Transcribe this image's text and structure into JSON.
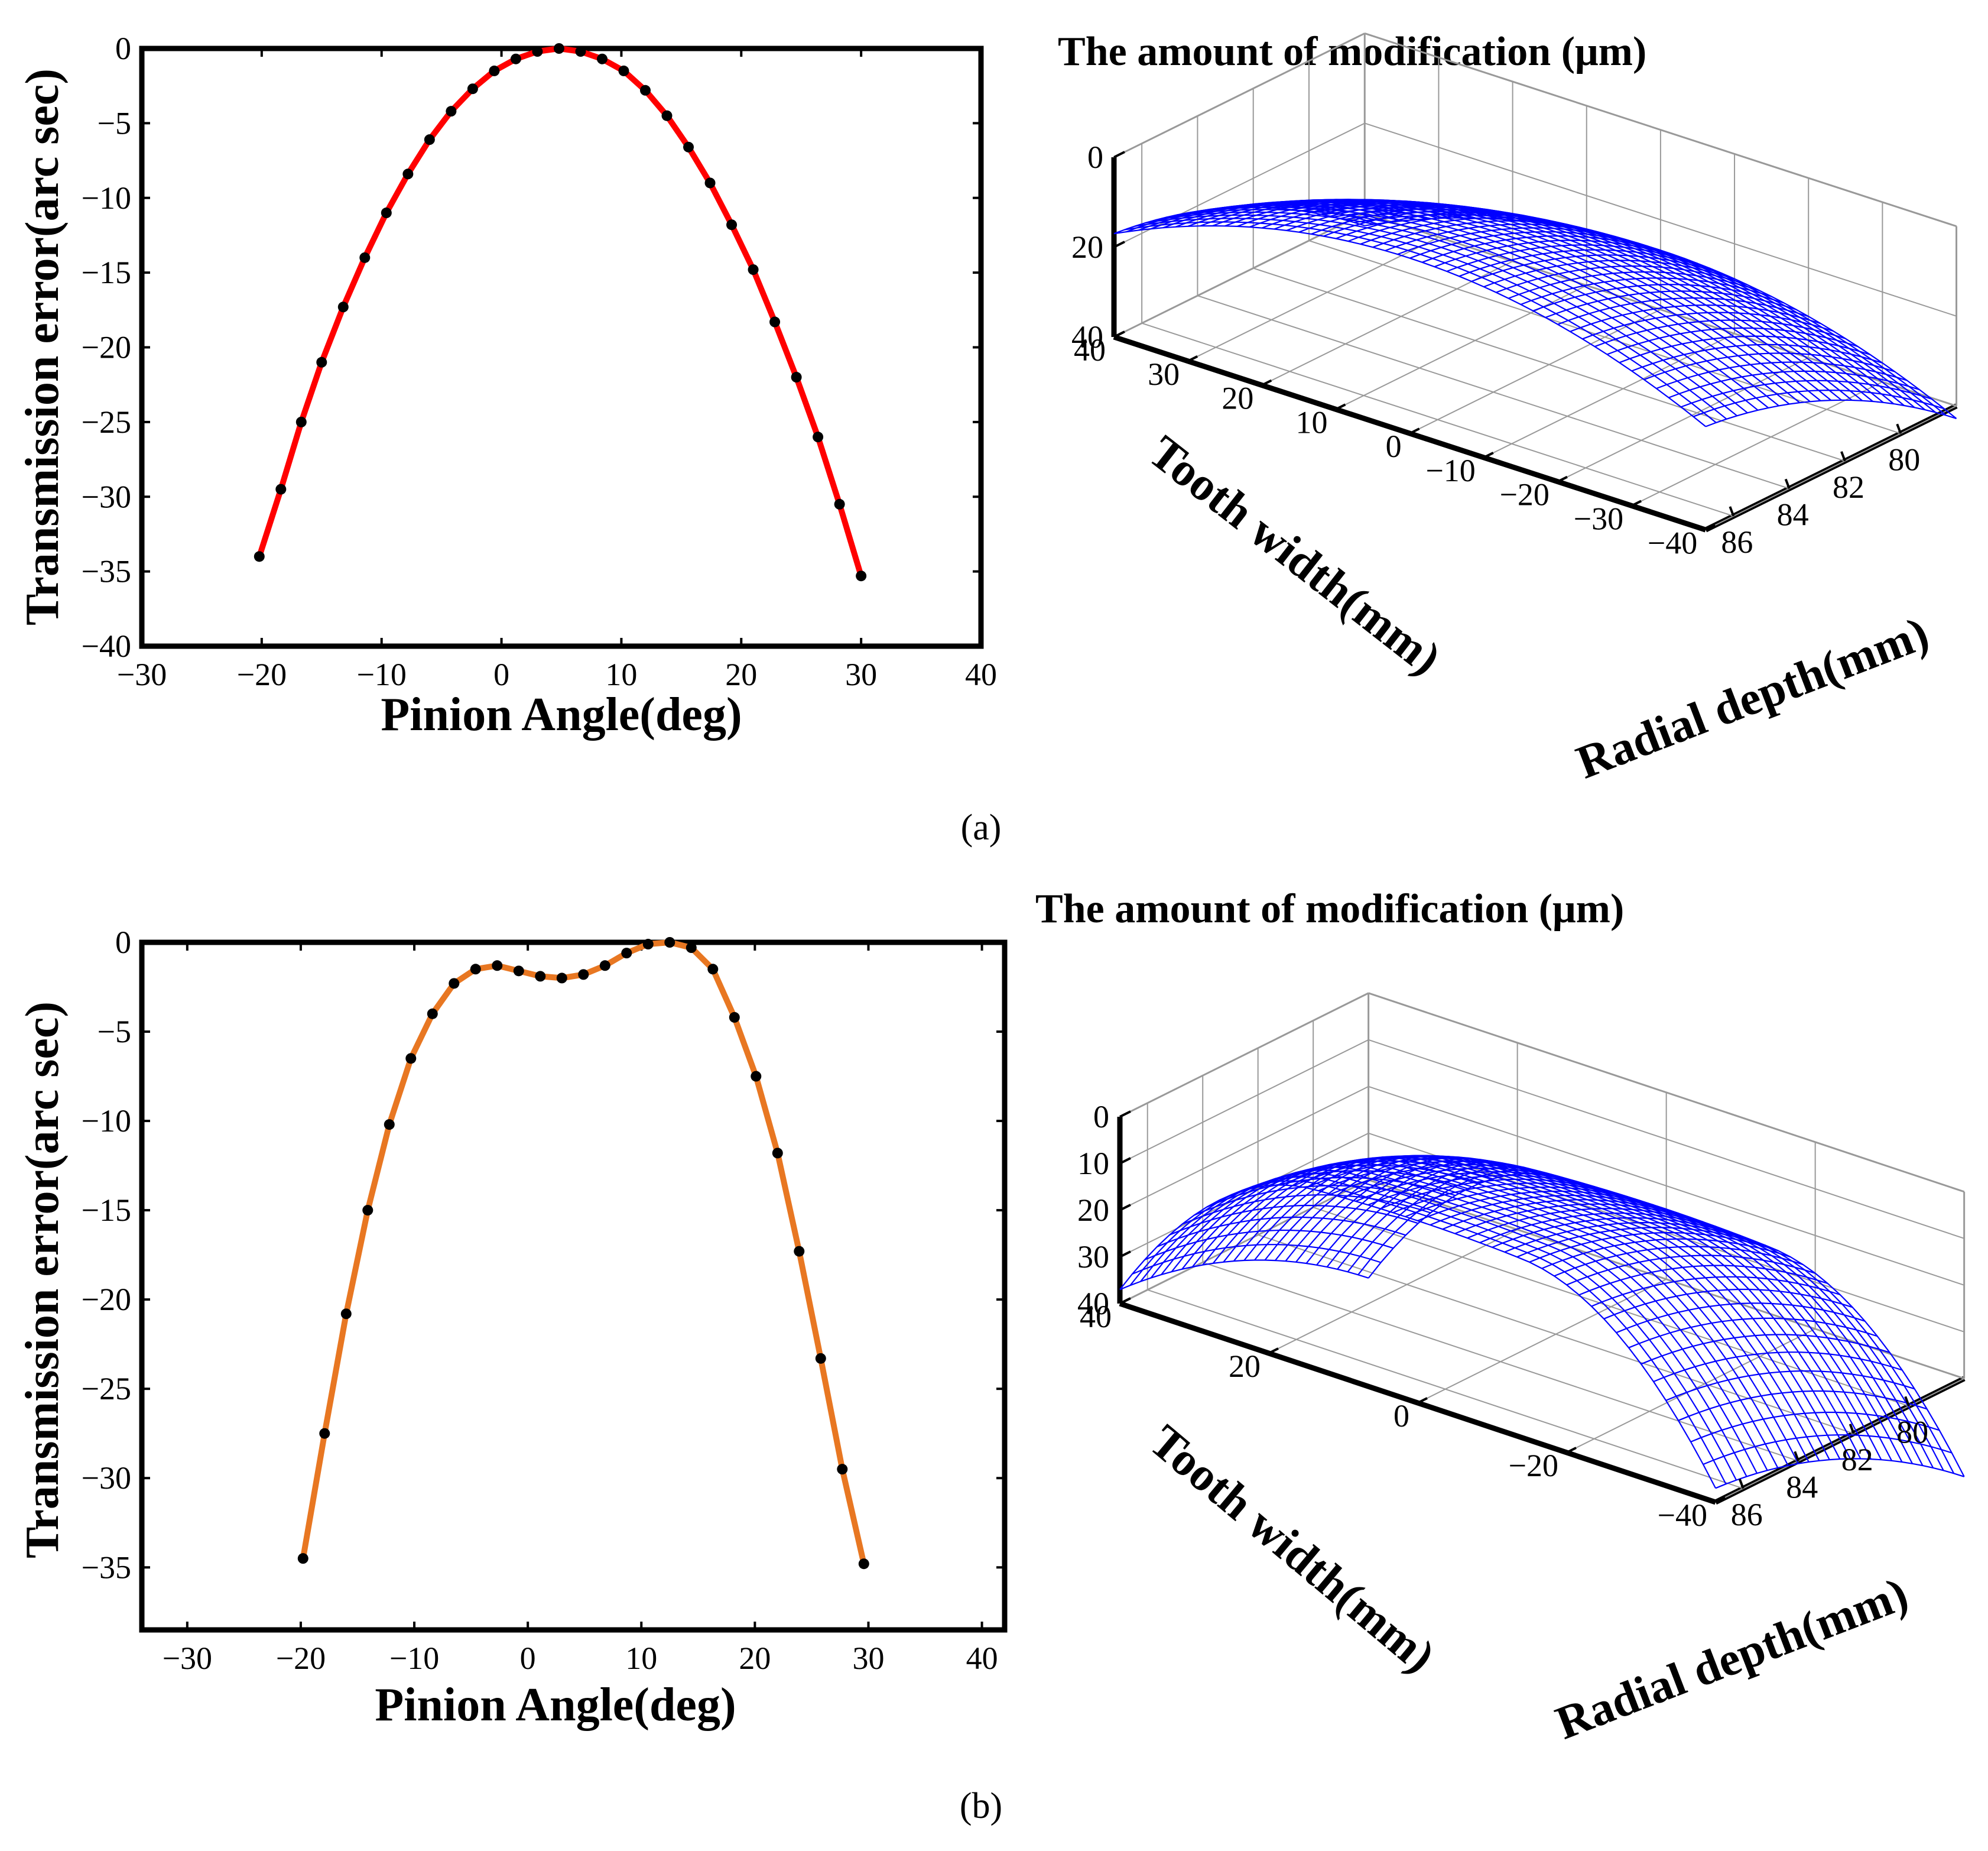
{
  "colors": {
    "series_a": "#ff0000",
    "series_b": "#e87722",
    "markers": "#000000",
    "mesh": "#0000ff",
    "grid": "#999999"
  },
  "chart_data": [
    {
      "id": "a-left",
      "type": "line",
      "panel_label": "(a)",
      "title": "",
      "xlabel": "Pinion Angle(deg)",
      "ylabel": "Transmission error(arc sec)",
      "xlim": [
        -30,
        40
      ],
      "ylim": [
        -40,
        0
      ],
      "xticks": [
        "−30",
        "−20",
        "−10",
        "0",
        "10",
        "20",
        "30",
        "40"
      ],
      "xtick_values": [
        -30,
        -20,
        -10,
        0,
        10,
        20,
        30,
        40
      ],
      "yticks": [
        "0",
        "−5",
        "−10",
        "−15",
        "−20",
        "−25",
        "−30",
        "−35",
        "−40"
      ],
      "ytick_values": [
        0,
        -5,
        -10,
        -15,
        -20,
        -25,
        -30,
        -35,
        -40
      ],
      "grid": false,
      "series": [
        {
          "name": "transmission error",
          "color_key": "series_a",
          "x": [
            -20.2,
            -18.4,
            -16.7,
            -15.0,
            -13.2,
            -11.4,
            -9.6,
            -7.8,
            -6.0,
            -4.2,
            -2.4,
            -0.6,
            1.2,
            3.0,
            4.8,
            6.6,
            8.4,
            10.2,
            12.0,
            13.8,
            15.6,
            17.4,
            19.2,
            21.0,
            22.8,
            24.6,
            26.4,
            28.2,
            30.0
          ],
          "y": [
            -34.0,
            -29.5,
            -25.0,
            -21.0,
            -17.3,
            -14.0,
            -11.0,
            -8.4,
            -6.1,
            -4.2,
            -2.7,
            -1.5,
            -0.7,
            -0.2,
            0.0,
            -0.2,
            -0.7,
            -1.5,
            -2.8,
            -4.5,
            -6.6,
            -9.0,
            -11.8,
            -14.8,
            -18.3,
            -22.0,
            -26.0,
            -30.5,
            -35.3
          ]
        }
      ]
    },
    {
      "id": "a-right",
      "type": "surface",
      "panel_label": "(a)",
      "title": "The amount of modification (μm)",
      "xlabel": "Tooth width(mm)",
      "ylabel": "Radial depth(mm)",
      "zlabel": "",
      "z_ticks": [
        "0",
        "20",
        "40"
      ],
      "z_tick_values": [
        0,
        20,
        40
      ],
      "x_ticks": [
        "40",
        "30",
        "20",
        "10",
        "0",
        "−10",
        "−20",
        "−30",
        "−40"
      ],
      "x_tick_values": [
        40,
        30,
        20,
        10,
        0,
        -10,
        -20,
        -30,
        -40
      ],
      "y_ticks": [
        "86",
        "84",
        "82",
        "80"
      ],
      "y_tick_values": [
        86,
        84,
        82,
        80
      ],
      "surface_model": "crowning",
      "tooth_width_range": [
        -40,
        40
      ],
      "radial_depth_range": [
        78,
        87
      ],
      "z_range": [
        0,
        40
      ]
    },
    {
      "id": "b-left",
      "type": "line",
      "panel_label": "(b)",
      "title": "",
      "xlabel": "Pinion Angle(deg)",
      "ylabel": "Transmission error(arc sec)",
      "xlim": [
        -34,
        42
      ],
      "ylim": [
        -38.5,
        0
      ],
      "xticks": [
        "−30",
        "−20",
        "−10",
        "0",
        "10",
        "20",
        "30",
        "40"
      ],
      "xtick_values": [
        -30,
        -20,
        -10,
        0,
        10,
        20,
        30,
        40
      ],
      "yticks": [
        "0",
        "−5",
        "−10",
        "−15",
        "−20",
        "−25",
        "−30",
        "−35"
      ],
      "ytick_values": [
        0,
        -5,
        -10,
        -15,
        -20,
        -25,
        -30,
        -35
      ],
      "grid": false,
      "series": [
        {
          "name": "transmission error",
          "color_key": "series_b",
          "x": [
            -19.8,
            -17.9,
            -16.0,
            -14.1,
            -12.2,
            -10.3,
            -8.4,
            -6.5,
            -4.6,
            -2.7,
            -0.8,
            1.1,
            3.0,
            4.9,
            6.8,
            8.7,
            10.6,
            12.5,
            14.4,
            16.3,
            18.2,
            20.1,
            22.0,
            23.9,
            25.8,
            27.7,
            29.6
          ],
          "y": [
            -34.5,
            -27.5,
            -20.8,
            -15.0,
            -10.2,
            -6.5,
            -4.0,
            -2.3,
            -1.5,
            -1.3,
            -1.6,
            -1.9,
            -2.0,
            -1.8,
            -1.3,
            -0.6,
            -0.1,
            0.0,
            -0.3,
            -1.5,
            -4.2,
            -7.5,
            -11.8,
            -17.3,
            -23.3,
            -29.5,
            -34.8
          ]
        }
      ]
    },
    {
      "id": "b-right",
      "type": "surface",
      "panel_label": "(b)",
      "title": "The amount of modification (μm)",
      "xlabel": "Tooth width(mm)",
      "ylabel": "Radial depth(mm)",
      "zlabel": "",
      "z_ticks": [
        "0",
        "10",
        "20",
        "30",
        "40"
      ],
      "z_tick_values": [
        0,
        10,
        20,
        30,
        40
      ],
      "x_ticks": [
        "40",
        "20",
        "0",
        "−20",
        "−40"
      ],
      "x_tick_values": [
        40,
        20,
        0,
        -20,
        -40
      ],
      "y_ticks": [
        "86",
        "84",
        "82",
        "80"
      ],
      "y_tick_values": [
        86,
        84,
        82,
        80
      ],
      "surface_model": "crowning-with-end-relief",
      "tooth_width_range": [
        -40,
        40
      ],
      "radial_depth_range": [
        78,
        87
      ],
      "z_range": [
        0,
        40
      ]
    }
  ],
  "panel_labels": {
    "a": "(a)",
    "b": "(b)"
  }
}
